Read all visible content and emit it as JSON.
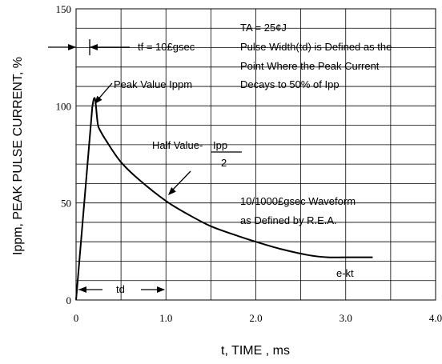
{
  "chart_data": {
    "type": "line",
    "title": "",
    "xlabel": "t, TIME , ms",
    "ylabel": "Ippm, PEAK PULSE CURRENT, %",
    "xlim": [
      0,
      4.0
    ],
    "ylim": [
      0,
      150
    ],
    "xticks": [
      0,
      1.0,
      2.0,
      3.0,
      4.0
    ],
    "xtick_labels": [
      "0",
      "1.0",
      "2.0",
      "3.0",
      "4.0"
    ],
    "yticks": [
      0,
      50,
      100,
      150
    ],
    "ytick_labels": [
      "0",
      "50",
      "100",
      "150"
    ],
    "grid": true,
    "series": [
      {
        "x": [
          0,
          0.18,
          0.25,
          0.35,
          0.5,
          0.7,
          1.0,
          1.25,
          1.5,
          1.8,
          2.0,
          2.3,
          2.6,
          2.8,
          3.0,
          3.3
        ],
        "y": [
          0,
          99,
          89,
          81,
          71,
          62,
          51,
          44,
          38,
          33,
          30,
          26,
          23,
          22,
          22,
          22
        ]
      }
    ],
    "annotations": {
      "ta": "TA = 25¢J",
      "pulse_width_1": "Pulse Width(td) is Defined as the",
      "pulse_width_2": "Point Where the Peak Current",
      "pulse_width_3": "Decays to 50% of Ipp",
      "tf": "tf = 10£gsec",
      "peak": "Peak Value Ippm",
      "half_value": "Half Value-",
      "half_num": "Ipp",
      "half_den": "2",
      "waveform_1": "10/1000£gsec Waveform",
      "waveform_2": "as Defined by R.E.A.",
      "ekt": "e-kt",
      "td": "td"
    }
  }
}
